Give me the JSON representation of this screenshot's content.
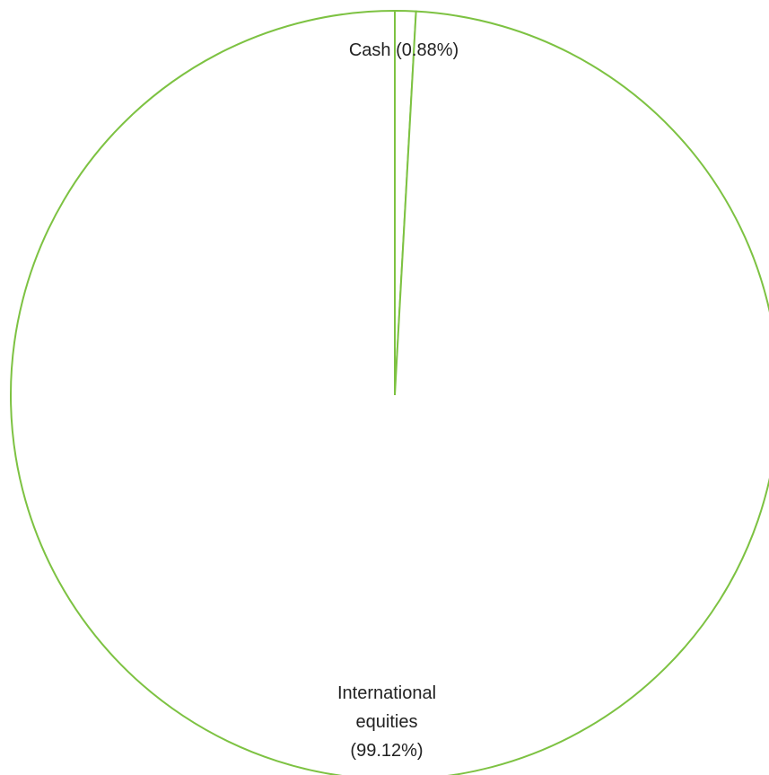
{
  "chart_data": {
    "type": "pie",
    "title": "",
    "slices": [
      {
        "label": "Cash (0.88%)",
        "category": "Cash",
        "value": 0.88
      },
      {
        "label": "International equities (99.12%)",
        "category": "International equities",
        "value": 99.12
      }
    ],
    "legend": "none",
    "colors": {
      "stroke": "#7dc242",
      "fill": "#ffffff",
      "text": "#222222"
    }
  }
}
